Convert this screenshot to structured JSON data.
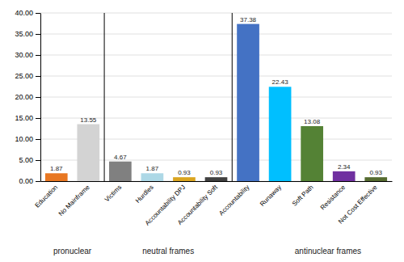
{
  "chart_data": {
    "type": "bar",
    "categories": [
      "Education",
      "No Mainframe",
      "Victims",
      "Hurdles",
      "Accountability DPJ",
      "Accountability Soft",
      "Accountability",
      "Runaway",
      "Soft Path",
      "Resistance",
      "Not Cost Effective"
    ],
    "values": [
      1.87,
      13.55,
      4.67,
      1.87,
      0.93,
      0.93,
      37.38,
      22.43,
      13.08,
      2.34,
      0.93
    ],
    "colors": [
      "#E87722",
      "#D3D3D3",
      "#808080",
      "#ADD8E6",
      "#DAA520",
      "#404040",
      "#4472C4",
      "#00BFFF",
      "#548235",
      "#7030A0",
      "#556B2F"
    ],
    "ylim": [
      0,
      40
    ],
    "yticks": [
      {
        "value": 0,
        "label": "0.00"
      },
      {
        "value": 5,
        "label": "5.00"
      },
      {
        "value": 10,
        "label": "10.00"
      },
      {
        "value": 15,
        "label": "15.00"
      },
      {
        "value": 20,
        "label": "20.00"
      },
      {
        "value": 25,
        "label": "25.00"
      },
      {
        "value": 30,
        "label": "30.00"
      },
      {
        "value": 35,
        "label": "35.00"
      },
      {
        "value": 40,
        "label": "40.00"
      }
    ],
    "grid": true,
    "data_labels": true,
    "annotations": [
      {
        "text": "pronuclear",
        "x": 0.5
      },
      {
        "text": "neutral frames",
        "x": 3.5
      },
      {
        "text": "antinuclear frames",
        "x": 8.5
      }
    ],
    "vlines": [
      1.5,
      5.5
    ]
  }
}
